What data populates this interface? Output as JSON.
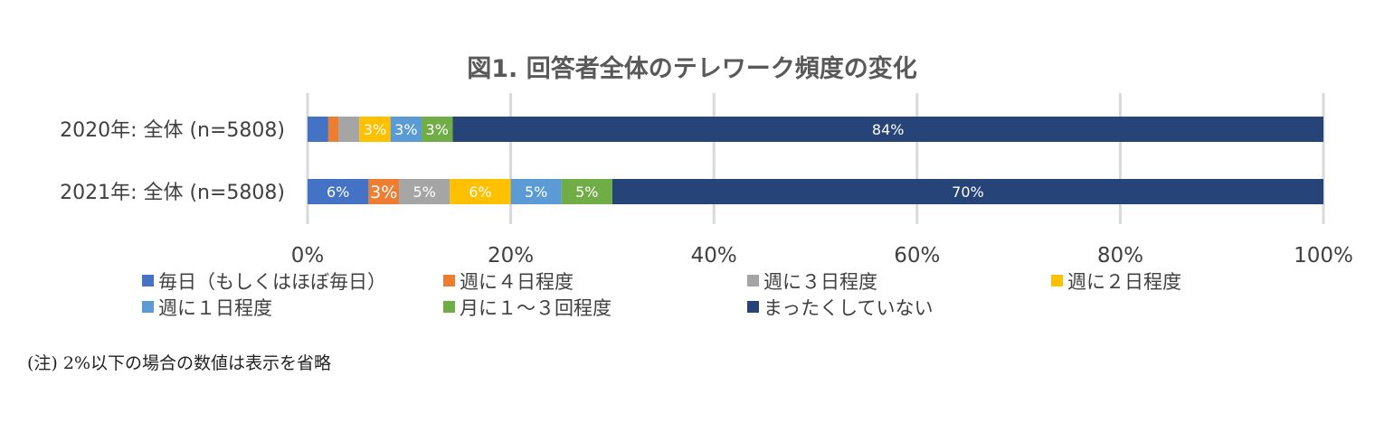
{
  "chart_data": {
    "type": "bar",
    "orientation": "horizontal",
    "stacked": true,
    "percent_stacked": true,
    "title": "図1. 回答者全体のテレワーク頻度の変化",
    "categories": [
      "2020年: 全体 (n=5808)",
      "2021年: 全体 (n=5808)"
    ],
    "xlim": [
      0,
      100
    ],
    "x_ticks": [
      "0%",
      "20%",
      "40%",
      "60%",
      "80%",
      "100%"
    ],
    "grid": "vertical",
    "legend_position": "bottom",
    "series": [
      {
        "name": "毎日（もしくはほぼ毎日）",
        "color": "#4472C4",
        "values": [
          2,
          6
        ],
        "labels": [
          "",
          "6%"
        ]
      },
      {
        "name": "週に４日程度",
        "color": "#ED7D31",
        "values": [
          1,
          3
        ],
        "labels": [
          "",
          "3%"
        ]
      },
      {
        "name": "週に３日程度",
        "color": "#A5A5A5",
        "values": [
          2,
          5
        ],
        "labels": [
          "",
          "5%"
        ]
      },
      {
        "name": "週に２日程度",
        "color": "#FFC000",
        "values": [
          3,
          6
        ],
        "labels": [
          "3%",
          "6%"
        ]
      },
      {
        "name": "週に１日程度",
        "color": "#5B9BD5",
        "values": [
          3,
          5
        ],
        "labels": [
          "3%",
          "5%"
        ]
      },
      {
        "name": "月に１～３回程度",
        "color": "#70AD47",
        "values": [
          3,
          5
        ],
        "labels": [
          "3%",
          "5%"
        ]
      },
      {
        "name": "まったくしていない",
        "color": "#264478",
        "values": [
          84,
          70
        ],
        "labels": [
          "84%",
          "70%"
        ]
      }
    ]
  },
  "footnote": "(注) 2%以下の場合の数値は表示を省略"
}
